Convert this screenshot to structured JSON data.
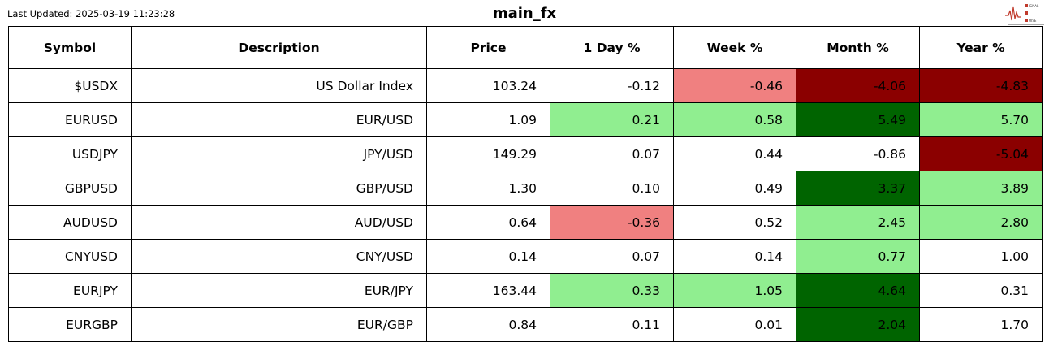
{
  "last_updated": "Last Updated: 2025-03-19 11:23:28",
  "title": "main_fx",
  "logo_text": "Signal 2 Noise",
  "colors": {
    "light_red": "#f08080",
    "dark_red": "#8b0000",
    "light_green": "#90ee90",
    "dark_green": "#006400",
    "none": "#ffffff"
  },
  "headers": [
    "Symbol",
    "Description",
    "Price",
    "1 Day %",
    "Week %",
    "Month %",
    "Year %"
  ],
  "rows": [
    {
      "cells": [
        "$USDX",
        "US Dollar Index",
        "103.24",
        "-0.12",
        "-0.46",
        "-4.06",
        "-4.83"
      ],
      "bg": [
        "none",
        "none",
        "none",
        "none",
        "light_red",
        "dark_red",
        "dark_red"
      ]
    },
    {
      "cells": [
        "EURUSD",
        "EUR/USD",
        "1.09",
        "0.21",
        "0.58",
        "5.49",
        "5.70"
      ],
      "bg": [
        "none",
        "none",
        "none",
        "light_green",
        "light_green",
        "dark_green",
        "light_green"
      ]
    },
    {
      "cells": [
        "USDJPY",
        "JPY/USD",
        "149.29",
        "0.07",
        "0.44",
        "-0.86",
        "-5.04"
      ],
      "bg": [
        "none",
        "none",
        "none",
        "none",
        "none",
        "none",
        "dark_red"
      ]
    },
    {
      "cells": [
        "GBPUSD",
        "GBP/USD",
        "1.30",
        "0.10",
        "0.49",
        "3.37",
        "3.89"
      ],
      "bg": [
        "none",
        "none",
        "none",
        "none",
        "none",
        "dark_green",
        "light_green"
      ]
    },
    {
      "cells": [
        "AUDUSD",
        "AUD/USD",
        "0.64",
        "-0.36",
        "0.52",
        "2.45",
        "2.80"
      ],
      "bg": [
        "none",
        "none",
        "none",
        "light_red",
        "none",
        "light_green",
        "light_green"
      ]
    },
    {
      "cells": [
        "CNYUSD",
        "CNY/USD",
        "0.14",
        "0.07",
        "0.14",
        "0.77",
        "1.00"
      ],
      "bg": [
        "none",
        "none",
        "none",
        "none",
        "none",
        "light_green",
        "none"
      ]
    },
    {
      "cells": [
        "EURJPY",
        "EUR/JPY",
        "163.44",
        "0.33",
        "1.05",
        "4.64",
        "0.31"
      ],
      "bg": [
        "none",
        "none",
        "none",
        "light_green",
        "light_green",
        "dark_green",
        "none"
      ]
    },
    {
      "cells": [
        "EURGBP",
        "EUR/GBP",
        "0.84",
        "0.11",
        "0.01",
        "2.04",
        "1.70"
      ],
      "bg": [
        "none",
        "none",
        "none",
        "none",
        "none",
        "dark_green",
        "none"
      ]
    }
  ]
}
